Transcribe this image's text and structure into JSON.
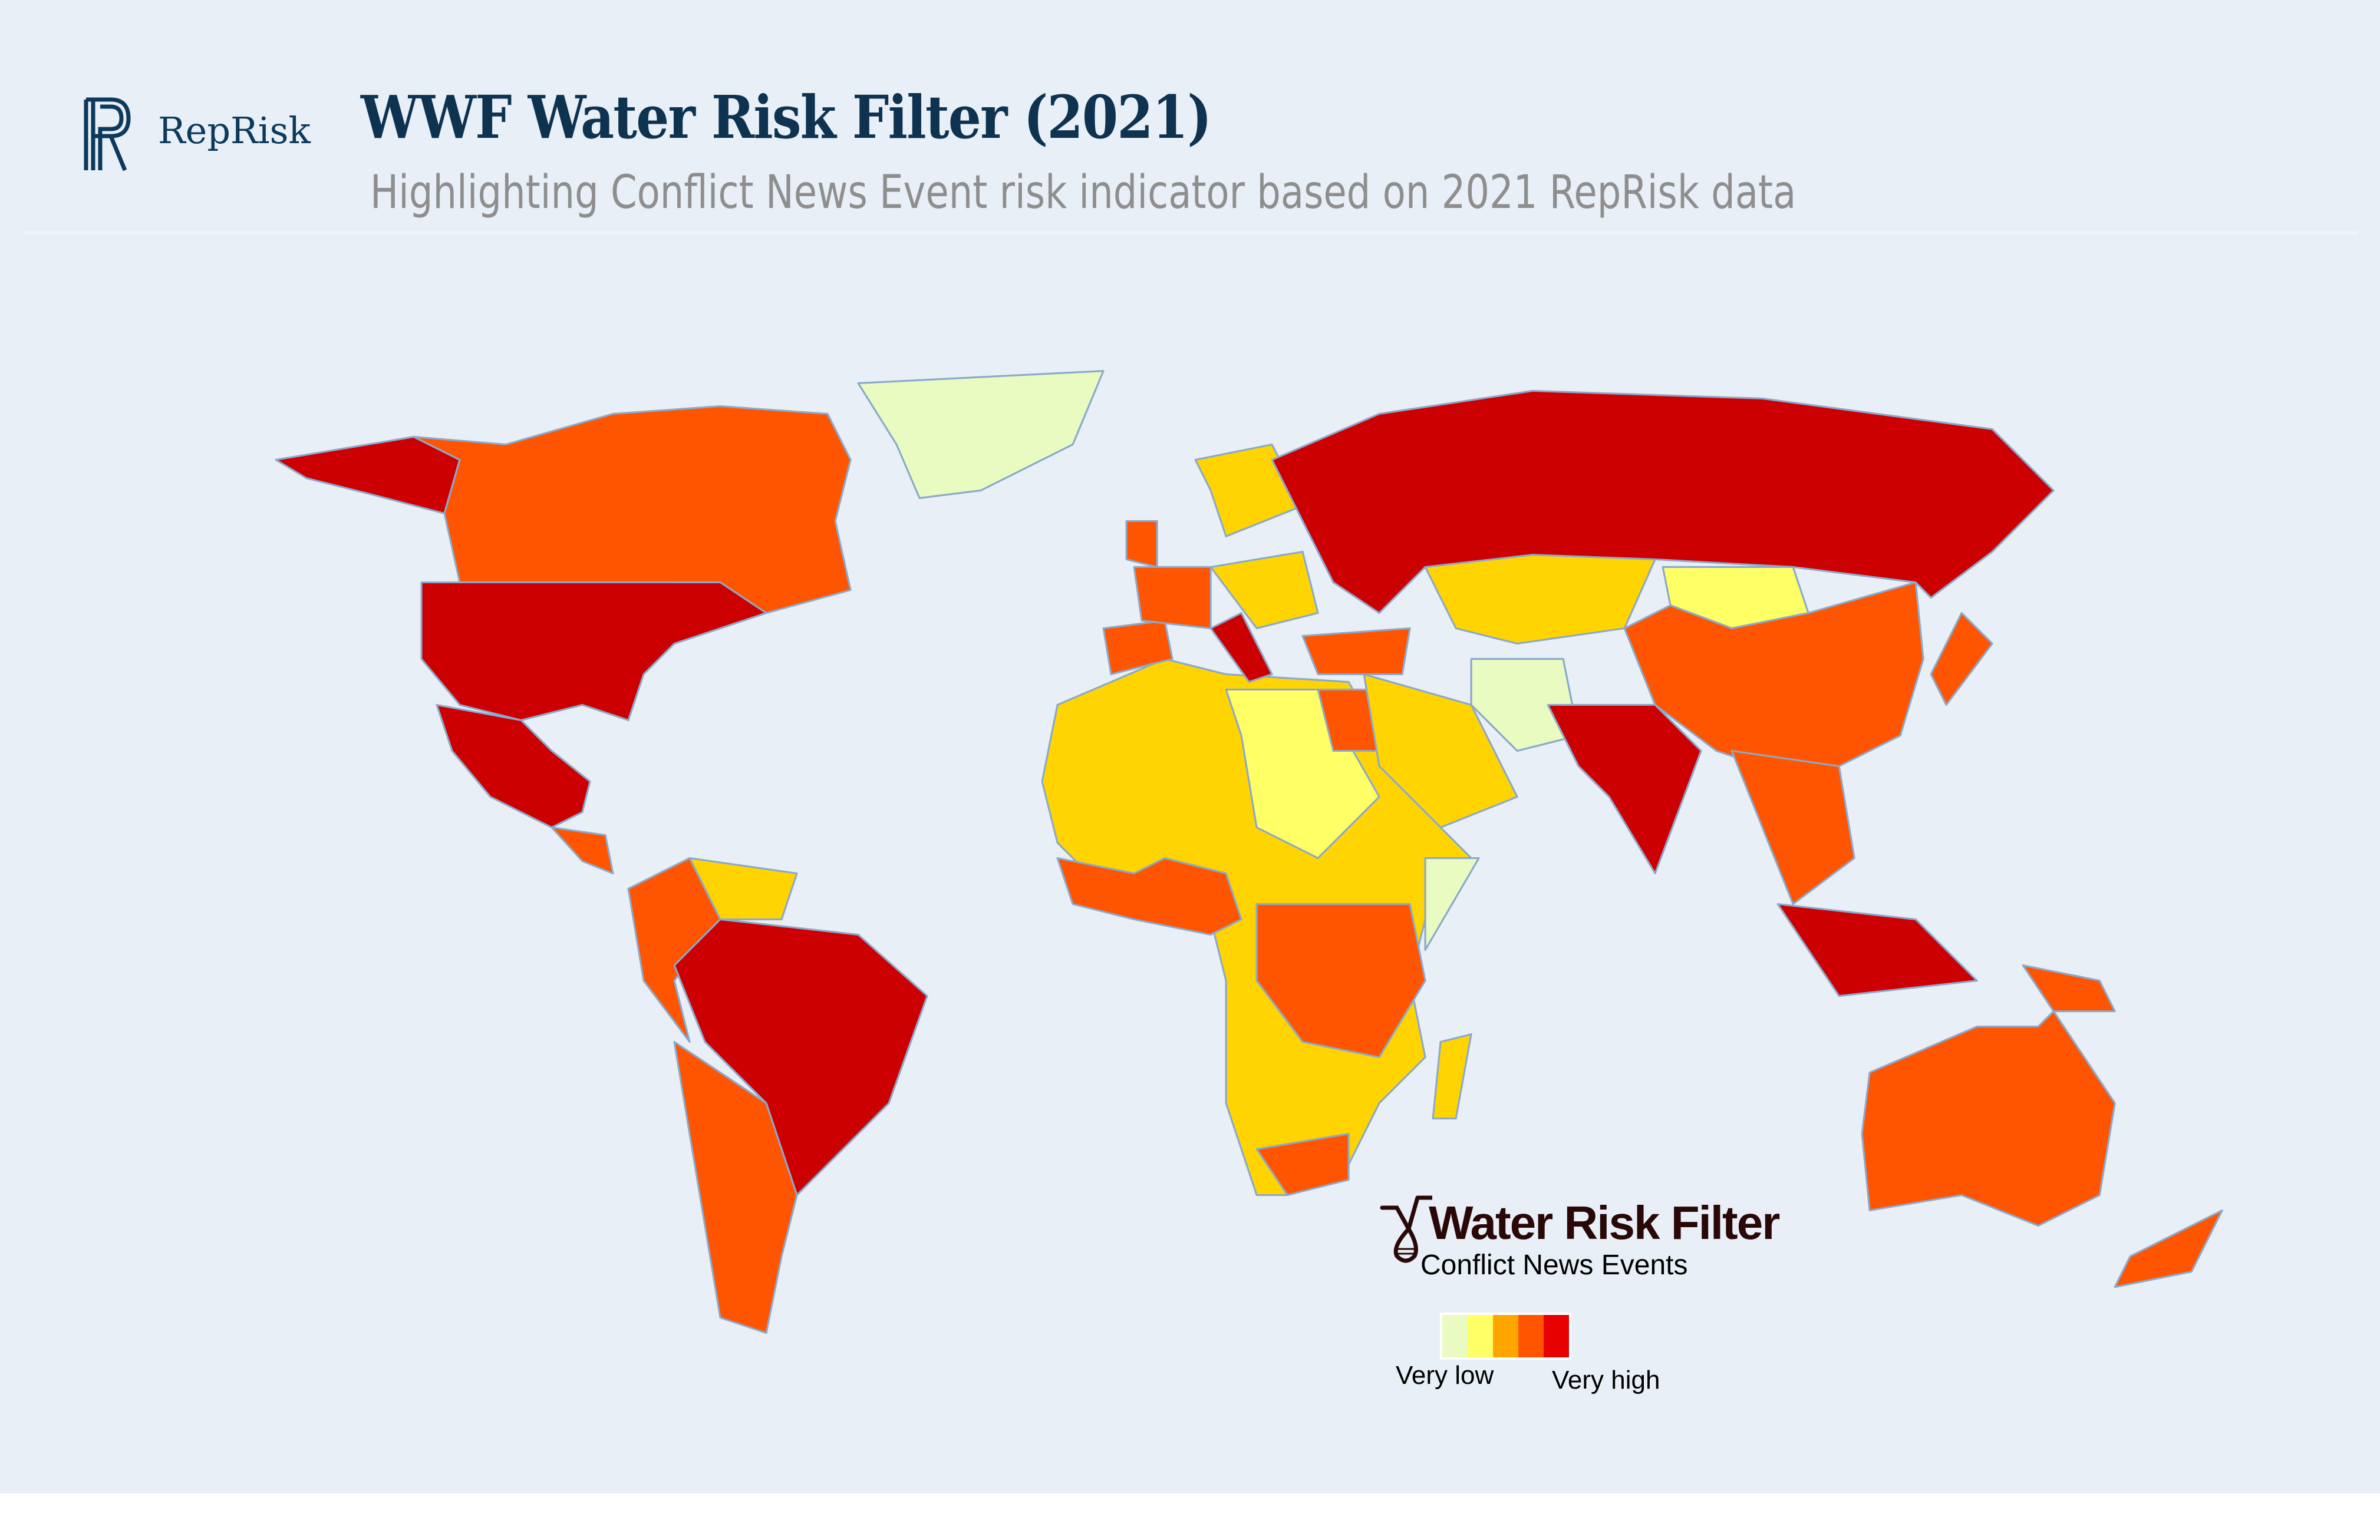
{
  "header": {
    "logo_text": "RepRisk",
    "title": "WWF Water Risk Filter (2021)",
    "subtitle": "Highlighting Conflict News Event risk indicator based on 2021 RepRisk data"
  },
  "legend": {
    "brand": "Water Risk Filter",
    "indicator": "Conflict News Events",
    "low_label": "Very low",
    "high_label": "Very high",
    "colors": [
      "#e9fbc0",
      "#ffff66",
      "#ffa500",
      "#ff5500",
      "#e60000"
    ]
  },
  "map_colors": {
    "ocean": "#e8eff6",
    "very_low": "#e9fbc0",
    "low": "#ffff66",
    "low_medium": "#ffd400",
    "high": "#ff5500",
    "very_high": "#cc0000",
    "border": "#8aa9cc"
  }
}
